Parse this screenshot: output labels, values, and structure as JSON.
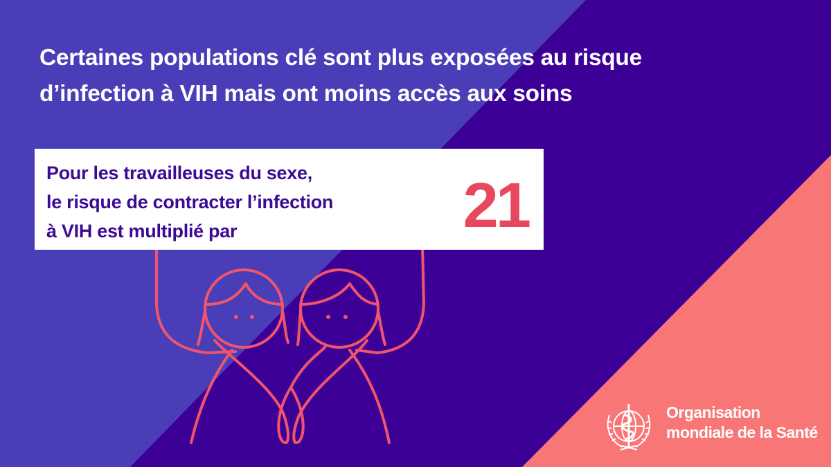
{
  "title": {
    "line1": "Certaines populations clé sont plus exposées au risque",
    "line2": "d’infection à VIH mais ont moins accès aux soins"
  },
  "sign": {
    "line1": "Pour les travailleuses du sexe,",
    "line2": "le risque de contracter l’infection",
    "line3": "à VIH est multiplié par",
    "number": "21"
  },
  "logo": {
    "line1": "Organisation",
    "line2": "mondiale de la Santé",
    "icon": "who-emblem-icon"
  },
  "colors": {
    "background_left": "#4a3db8",
    "background_band": "#3d0096",
    "background_corner": "#f87676",
    "accent": "#e8485e",
    "illustration_line": "#f0556c",
    "sign_text": "#3d0a96"
  }
}
